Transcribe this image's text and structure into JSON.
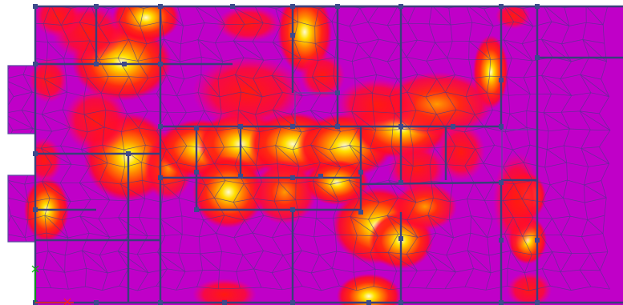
{
  "view": {
    "kind": "finite-element slab stress contour plot",
    "colors": {
      "background": "#ffffff",
      "low": "#c000c8",
      "mid": "#ff1010",
      "midHigh": "#ff6a00",
      "high": "#ffe000",
      "peak": "#fff8a0",
      "mesh": "#4a3a8a",
      "frame": "#3a3f7a",
      "node": "#3d4a8c"
    },
    "axis_triad": {
      "x_color": "#ff2020",
      "y_color": "#00b000"
    }
  }
}
